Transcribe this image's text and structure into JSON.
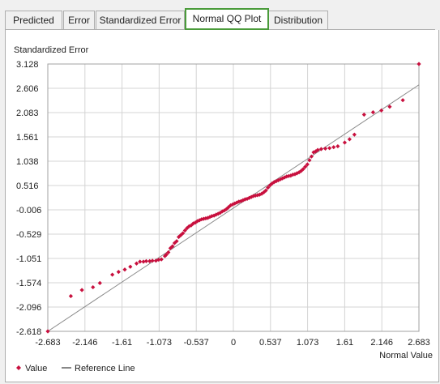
{
  "tabs": [
    {
      "label": "Predicted",
      "active": false
    },
    {
      "label": "Error",
      "active": false
    },
    {
      "label": "Standardized Error",
      "active": false
    },
    {
      "label": "Normal QQ Plot",
      "active": true
    },
    {
      "label": "Distribution",
      "active": false
    }
  ],
  "colors": {
    "active_tab_border": "#4a9b3a",
    "points": "#c8103e",
    "reference_line": "#888888",
    "grid": "#d4d4d4"
  },
  "chart_data": {
    "type": "scatter",
    "ylabel": "Standardized Error",
    "xlabel": "Normal Value",
    "x_ticks": [
      "-2.683",
      "-2.146",
      "-1.61",
      "-1.073",
      "-0.537",
      "0",
      "0.537",
      "1.073",
      "1.61",
      "2.146",
      "2.683"
    ],
    "y_ticks": [
      "3.128",
      "2.606",
      "2.083",
      "1.561",
      "1.038",
      "0.516",
      "-0.006",
      "-0.529",
      "-1.051",
      "-1.574",
      "-2.096",
      "-2.618"
    ],
    "xlim": [
      -2.683,
      2.683
    ],
    "ylim": [
      -2.618,
      3.128
    ],
    "grid": true,
    "legend": {
      "placement": "bottom-left",
      "entries": [
        {
          "label": "Value",
          "marker": "diamond"
        },
        {
          "label": "Reference Line",
          "marker": "line"
        }
      ]
    },
    "reference_line": {
      "x": [
        -2.683,
        2.683
      ],
      "y": [
        -2.618,
        2.68
      ]
    },
    "series": [
      {
        "points": [
          [
            -2.683,
            -2.618
          ],
          [
            -2.35,
            -1.86
          ],
          [
            -2.19,
            -1.73
          ],
          [
            -2.03,
            -1.67
          ],
          [
            -1.93,
            -1.58
          ],
          [
            -1.75,
            -1.4
          ],
          [
            -1.66,
            -1.34
          ],
          [
            -1.57,
            -1.29
          ],
          [
            -1.49,
            -1.23
          ],
          [
            -1.4,
            -1.16
          ],
          [
            -1.35,
            -1.12
          ],
          [
            -1.3,
            -1.12
          ],
          [
            -1.26,
            -1.11
          ],
          [
            -1.21,
            -1.11
          ],
          [
            -1.17,
            -1.1
          ],
          [
            -1.12,
            -1.1
          ],
          [
            -1.08,
            -1.08
          ],
          [
            -1.04,
            -1.07
          ],
          [
            -0.99,
            -1.0
          ],
          [
            -0.97,
            -0.97
          ],
          [
            -0.94,
            -0.92
          ],
          [
            -0.91,
            -0.83
          ],
          [
            -0.88,
            -0.79
          ],
          [
            -0.85,
            -0.72
          ],
          [
            -0.82,
            -0.68
          ],
          [
            -0.79,
            -0.59
          ],
          [
            -0.76,
            -0.55
          ],
          [
            -0.73,
            -0.51
          ],
          [
            -0.7,
            -0.45
          ],
          [
            -0.67,
            -0.4
          ],
          [
            -0.64,
            -0.36
          ],
          [
            -0.61,
            -0.34
          ],
          [
            -0.58,
            -0.3
          ],
          [
            -0.55,
            -0.28
          ],
          [
            -0.52,
            -0.25
          ],
          [
            -0.49,
            -0.23
          ],
          [
            -0.46,
            -0.21
          ],
          [
            -0.43,
            -0.2
          ],
          [
            -0.4,
            -0.19
          ],
          [
            -0.37,
            -0.18
          ],
          [
            -0.34,
            -0.16
          ],
          [
            -0.31,
            -0.14
          ],
          [
            -0.28,
            -0.13
          ],
          [
            -0.25,
            -0.11
          ],
          [
            -0.22,
            -0.09
          ],
          [
            -0.19,
            -0.07
          ],
          [
            -0.16,
            -0.04
          ],
          [
            -0.13,
            -0.02
          ],
          [
            -0.1,
            0.01
          ],
          [
            -0.07,
            0.05
          ],
          [
            -0.04,
            0.09
          ],
          [
            -0.01,
            0.11
          ],
          [
            0.02,
            0.13
          ],
          [
            0.05,
            0.15
          ],
          [
            0.08,
            0.17
          ],
          [
            0.11,
            0.18
          ],
          [
            0.14,
            0.2
          ],
          [
            0.17,
            0.22
          ],
          [
            0.2,
            0.23
          ],
          [
            0.23,
            0.25
          ],
          [
            0.26,
            0.27
          ],
          [
            0.29,
            0.29
          ],
          [
            0.32,
            0.3
          ],
          [
            0.35,
            0.31
          ],
          [
            0.38,
            0.32
          ],
          [
            0.41,
            0.34
          ],
          [
            0.44,
            0.37
          ],
          [
            0.47,
            0.41
          ],
          [
            0.5,
            0.47
          ],
          [
            0.53,
            0.52
          ],
          [
            0.56,
            0.56
          ],
          [
            0.59,
            0.59
          ],
          [
            0.62,
            0.61
          ],
          [
            0.65,
            0.63
          ],
          [
            0.68,
            0.65
          ],
          [
            0.71,
            0.67
          ],
          [
            0.74,
            0.69
          ],
          [
            0.77,
            0.71
          ],
          [
            0.8,
            0.72
          ],
          [
            0.83,
            0.73
          ],
          [
            0.86,
            0.75
          ],
          [
            0.89,
            0.76
          ],
          [
            0.92,
            0.78
          ],
          [
            0.95,
            0.8
          ],
          [
            0.98,
            0.83
          ],
          [
            1.01,
            0.87
          ],
          [
            1.04,
            0.92
          ],
          [
            1.07,
            0.97
          ],
          [
            1.1,
            1.06
          ],
          [
            1.13,
            1.14
          ],
          [
            1.16,
            1.23
          ],
          [
            1.19,
            1.25
          ],
          [
            1.22,
            1.28
          ],
          [
            1.27,
            1.3
          ],
          [
            1.33,
            1.31
          ],
          [
            1.39,
            1.32
          ],
          [
            1.45,
            1.34
          ],
          [
            1.51,
            1.36
          ],
          [
            1.61,
            1.44
          ],
          [
            1.68,
            1.51
          ],
          [
            1.75,
            1.61
          ],
          [
            1.89,
            2.04
          ],
          [
            2.02,
            2.09
          ],
          [
            2.14,
            2.13
          ],
          [
            2.26,
            2.21
          ],
          [
            2.45,
            2.35
          ],
          [
            2.683,
            3.128
          ]
        ]
      }
    ]
  }
}
